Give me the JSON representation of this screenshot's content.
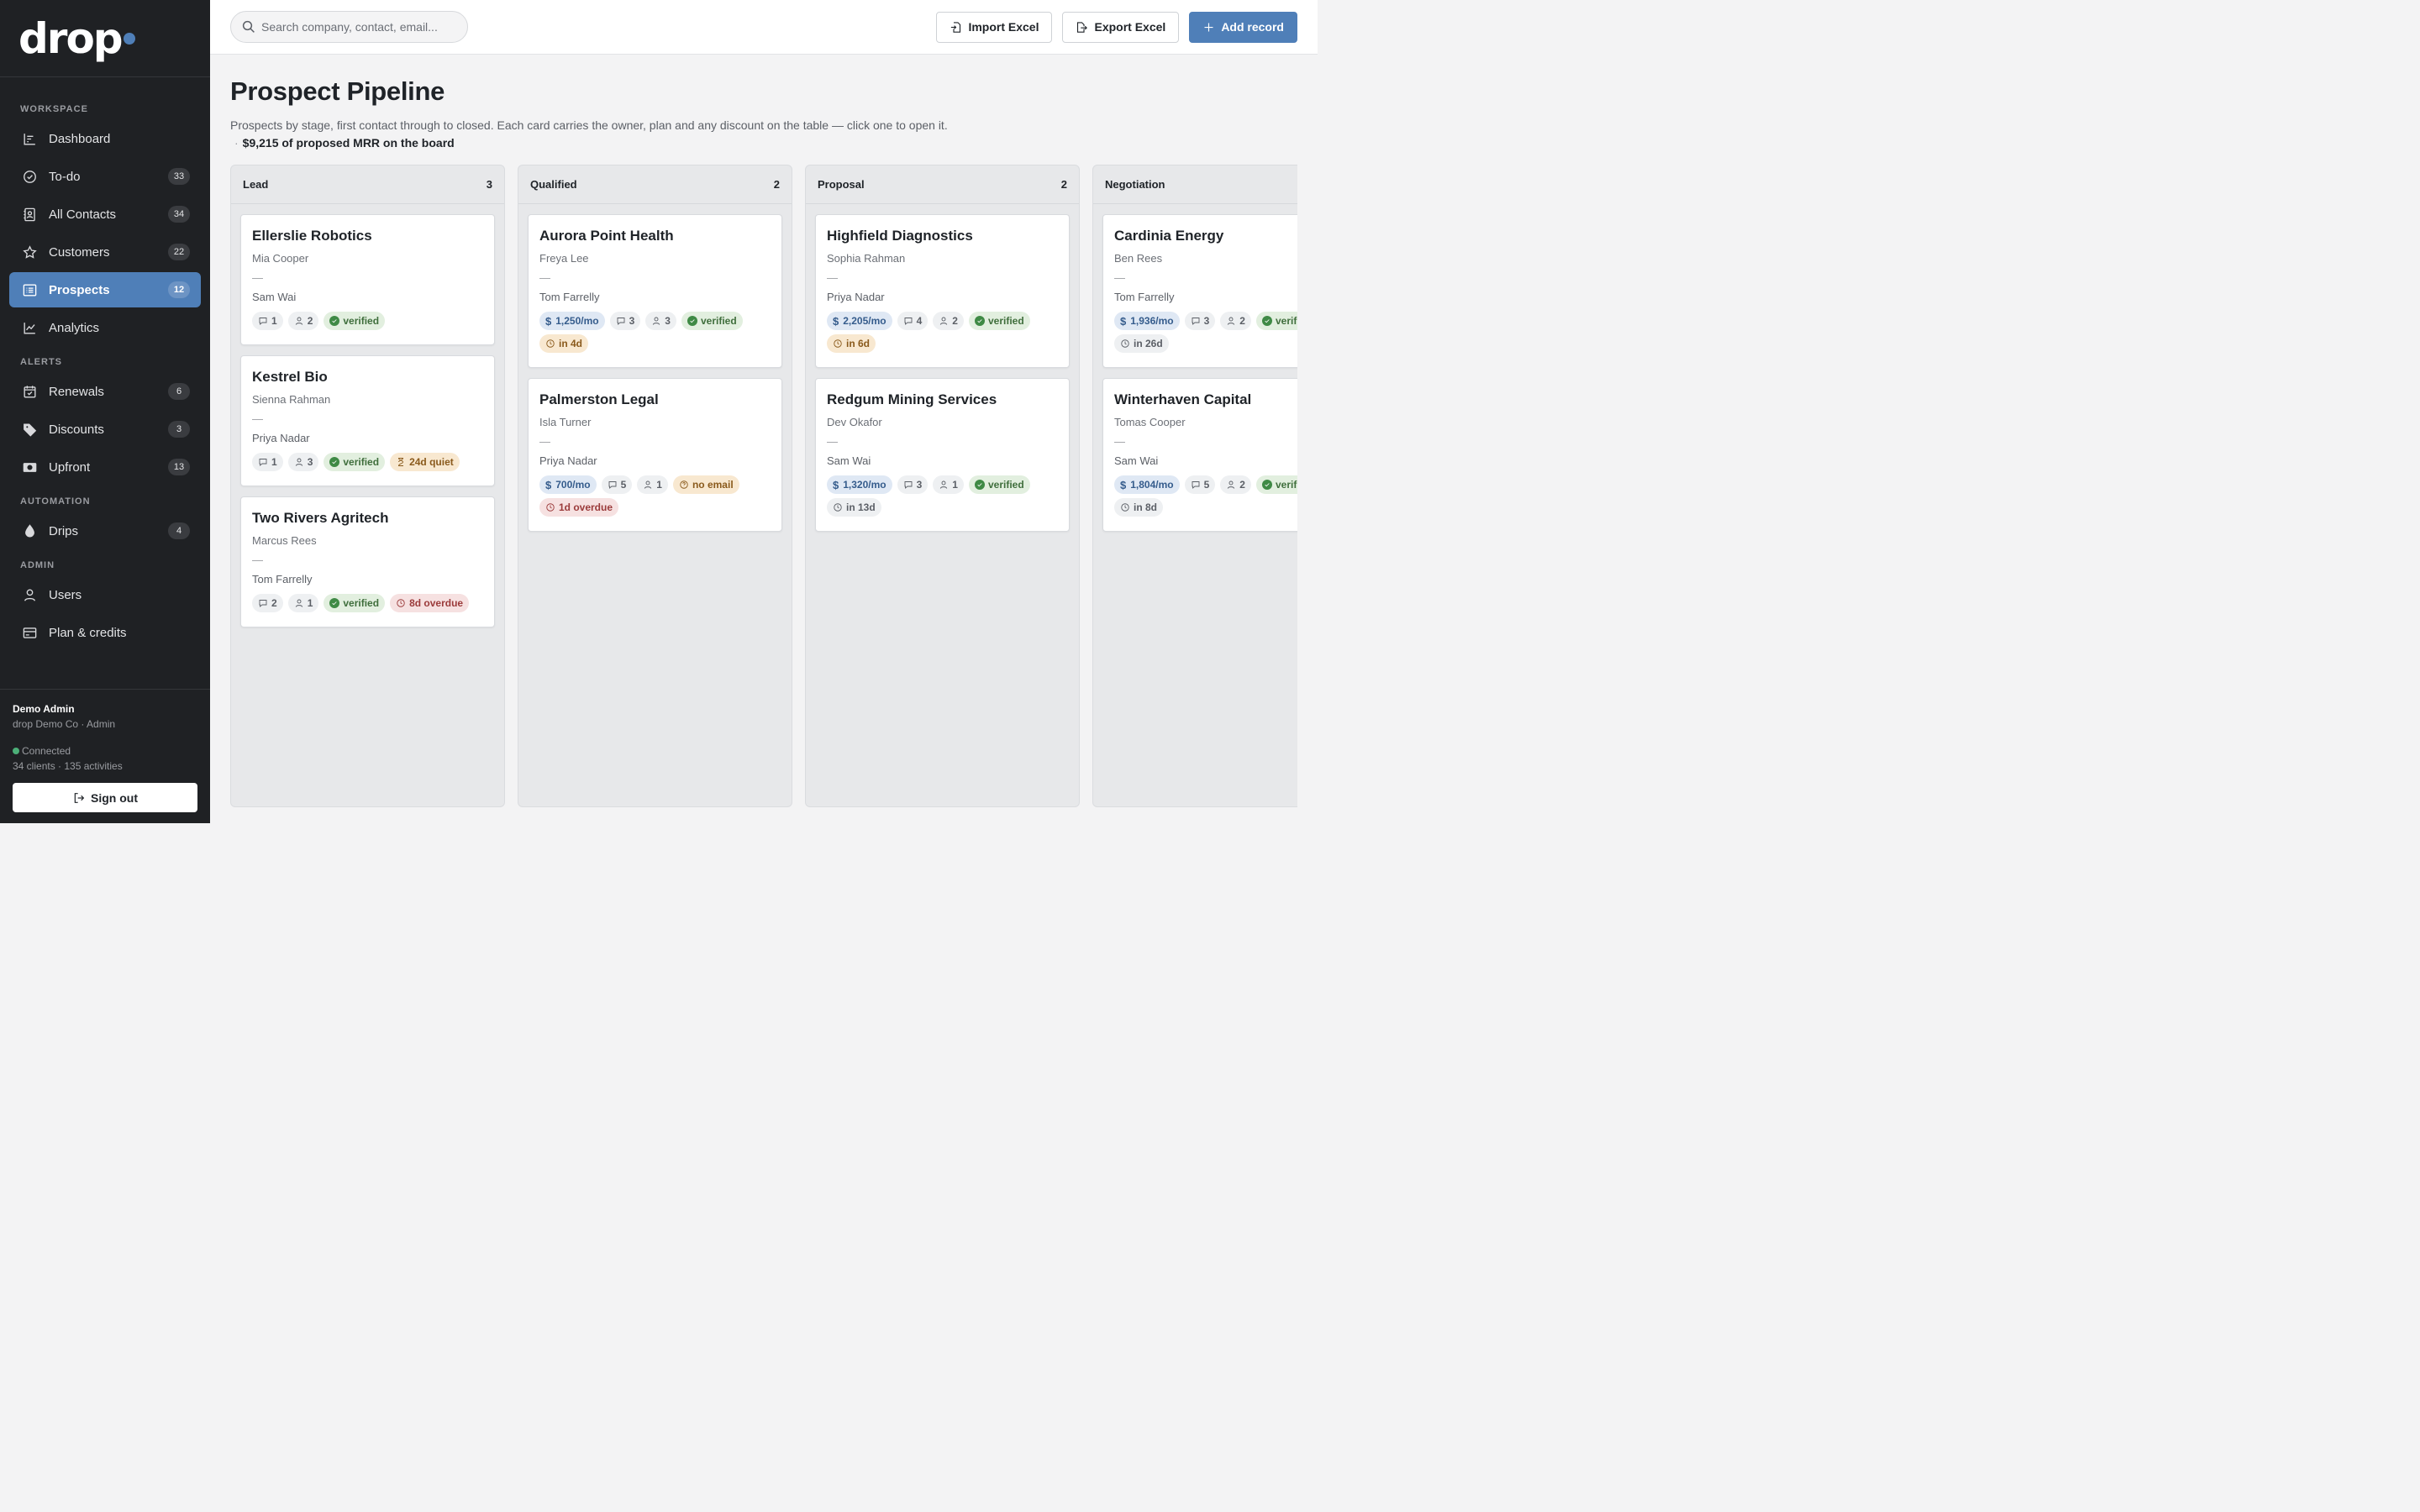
{
  "brand": {
    "name": "drop",
    "accent": "#4f7fb8"
  },
  "nav": {
    "sections": [
      {
        "label": "WORKSPACE",
        "items": [
          {
            "key": "dashboard",
            "label": "Dashboard",
            "icon": "bar-chart-icon",
            "count": ""
          },
          {
            "key": "todo",
            "label": "To-do",
            "icon": "check-circle-icon",
            "count": "33"
          },
          {
            "key": "contacts",
            "label": "All Contacts",
            "icon": "contact-book-icon",
            "count": "34"
          },
          {
            "key": "customers",
            "label": "Customers",
            "icon": "star-icon",
            "count": "22"
          },
          {
            "key": "prospects",
            "label": "Prospects",
            "icon": "list-icon",
            "count": "12",
            "active": true
          },
          {
            "key": "analytics",
            "label": "Analytics",
            "icon": "line-chart-icon",
            "count": ""
          }
        ]
      },
      {
        "label": "ALERTS",
        "items": [
          {
            "key": "renewals",
            "label": "Renewals",
            "icon": "calendar-check-icon",
            "count": "6"
          },
          {
            "key": "discounts",
            "label": "Discounts",
            "icon": "tag-icon",
            "count": "3"
          },
          {
            "key": "upfront",
            "label": "Upfront",
            "icon": "cash-icon",
            "count": "13"
          }
        ]
      },
      {
        "label": "AUTOMATION",
        "items": [
          {
            "key": "drips",
            "label": "Drips",
            "icon": "drop-icon",
            "count": "4"
          }
        ]
      },
      {
        "label": "ADMIN",
        "items": [
          {
            "key": "users",
            "label": "Users",
            "icon": "user-icon",
            "count": ""
          },
          {
            "key": "plan",
            "label": "Plan & credits",
            "icon": "credit-card-icon",
            "count": ""
          }
        ]
      }
    ]
  },
  "footer": {
    "user_name": "Demo Admin",
    "org": "drop Demo Co · Admin",
    "status": "Connected",
    "stats": "34 clients · 135 activities",
    "signout": "Sign out"
  },
  "topbar": {
    "search_placeholder": "Search company, contact, email...",
    "import_label": "Import Excel",
    "export_label": "Export Excel",
    "add_label": "Add record"
  },
  "page": {
    "title": "Prospect Pipeline",
    "subtitle": "Prospects by stage, first contact through to closed. Each card carries the owner, plan and any discount on the table — click one to open it.",
    "mrr_sep": "·",
    "mrr": "$9,215 of proposed MRR on the board"
  },
  "columns": [
    {
      "name": "Lead",
      "count": "3",
      "cards": [
        {
          "company": "Ellerslie Robotics",
          "contact": "Mia Cooper",
          "dash": "—",
          "owner": "Sam Wai",
          "chips": [
            {
              "type": "comments",
              "text": "1"
            },
            {
              "type": "people",
              "text": "2"
            },
            {
              "type": "verified",
              "text": "verified"
            }
          ]
        },
        {
          "company": "Kestrel Bio",
          "contact": "Sienna Rahman",
          "dash": "—",
          "owner": "Priya Nadar",
          "chips": [
            {
              "type": "comments",
              "text": "1"
            },
            {
              "type": "people",
              "text": "3"
            },
            {
              "type": "verified",
              "text": "verified"
            },
            {
              "type": "quiet",
              "text": "24d quiet"
            }
          ]
        },
        {
          "company": "Two Rivers Agritech",
          "contact": "Marcus Rees",
          "dash": "—",
          "owner": "Tom Farrelly",
          "chips": [
            {
              "type": "comments",
              "text": "2"
            },
            {
              "type": "people",
              "text": "1"
            },
            {
              "type": "verified",
              "text": "verified"
            },
            {
              "type": "overdue",
              "text": "8d overdue"
            }
          ]
        }
      ]
    },
    {
      "name": "Qualified",
      "count": "2",
      "cards": [
        {
          "company": "Aurora Point Health",
          "contact": "Freya Lee",
          "dash": "—",
          "owner": "Tom Farrelly",
          "chips": [
            {
              "type": "mrr",
              "text": "1,250/mo"
            },
            {
              "type": "comments",
              "text": "3"
            },
            {
              "type": "people",
              "text": "3"
            },
            {
              "type": "verified",
              "text": "verified"
            },
            {
              "type": "due",
              "text": "in 4d"
            }
          ]
        },
        {
          "company": "Palmerston Legal",
          "contact": "Isla Turner",
          "dash": "—",
          "owner": "Priya Nadar",
          "chips": [
            {
              "type": "mrr",
              "text": "700/mo"
            },
            {
              "type": "comments",
              "text": "5"
            },
            {
              "type": "people",
              "text": "1"
            },
            {
              "type": "noemail",
              "text": "no email"
            },
            {
              "type": "overdue",
              "text": "1d overdue"
            }
          ]
        }
      ]
    },
    {
      "name": "Proposal",
      "count": "2",
      "cards": [
        {
          "company": "Highfield Diagnostics",
          "contact": "Sophia Rahman",
          "dash": "—",
          "owner": "Priya Nadar",
          "chips": [
            {
              "type": "mrr",
              "text": "2,205/mo"
            },
            {
              "type": "comments",
              "text": "4"
            },
            {
              "type": "people",
              "text": "2"
            },
            {
              "type": "verified",
              "text": "verified"
            },
            {
              "type": "due",
              "text": "in 6d"
            }
          ]
        },
        {
          "company": "Redgum Mining Services",
          "contact": "Dev Okafor",
          "dash": "—",
          "owner": "Sam Wai",
          "chips": [
            {
              "type": "mrr",
              "text": "1,320/mo"
            },
            {
              "type": "comments",
              "text": "3"
            },
            {
              "type": "people",
              "text": "1"
            },
            {
              "type": "verified",
              "text": "verified"
            },
            {
              "type": "time",
              "text": "in 13d"
            }
          ]
        }
      ]
    },
    {
      "name": "Negotiation",
      "count": "",
      "cards": [
        {
          "company": "Cardinia Energy",
          "contact": "Ben Rees",
          "dash": "—",
          "owner": "Tom Farrelly",
          "chips": [
            {
              "type": "mrr",
              "text": "1,936/mo"
            },
            {
              "type": "comments",
              "text": "3"
            },
            {
              "type": "people",
              "text": "2"
            },
            {
              "type": "verified",
              "text": "verified"
            },
            {
              "type": "time",
              "text": "in 26d"
            }
          ]
        },
        {
          "company": "Winterhaven Capital",
          "contact": "Tomas Cooper",
          "dash": "—",
          "owner": "Sam Wai",
          "chips": [
            {
              "type": "mrr",
              "text": "1,804/mo"
            },
            {
              "type": "comments",
              "text": "5"
            },
            {
              "type": "people",
              "text": "2"
            },
            {
              "type": "verified",
              "text": "verified"
            },
            {
              "type": "time",
              "text": "in 8d"
            }
          ]
        }
      ]
    }
  ]
}
